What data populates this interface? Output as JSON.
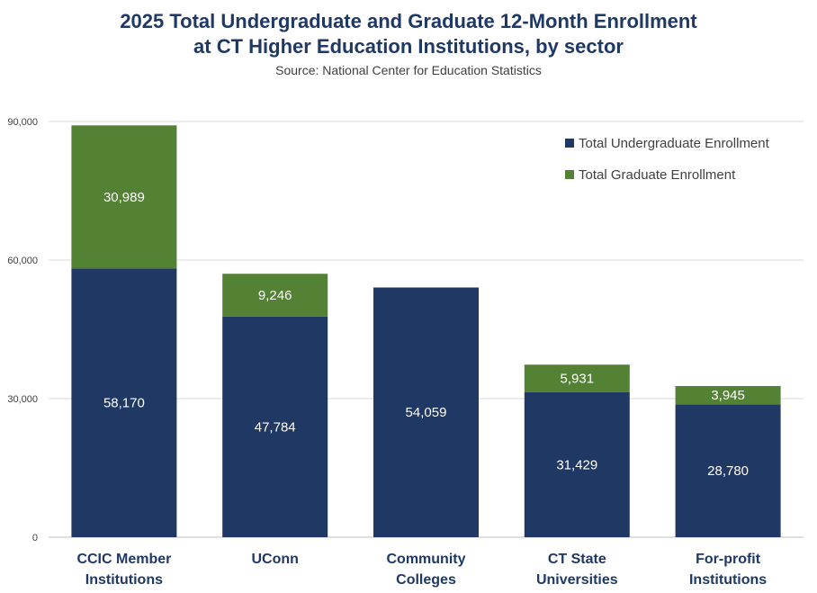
{
  "chart_data": {
    "type": "bar",
    "stacked": true,
    "title_lines": [
      "2025 Total Undergraduate and Graduate 12-Month Enrollment",
      "at CT Higher Education Institutions, by sector"
    ],
    "subtitle": "Source: National Center for Education Statistics",
    "categories": [
      [
        "CCIC Member",
        "Institutions"
      ],
      [
        "UConn"
      ],
      [
        "Community",
        "Colleges"
      ],
      [
        "CT State",
        "Universities"
      ],
      [
        "For-profit",
        "Institutions"
      ]
    ],
    "series": [
      {
        "name": "Total Undergraduate Enrollment",
        "color": "#203864",
        "values": [
          58170,
          47784,
          54059,
          31429,
          28780
        ],
        "labels": [
          "58,170",
          "47,784",
          "54,059",
          "31,429",
          "28,780"
        ]
      },
      {
        "name": "Total Graduate Enrollment",
        "color": "#548235",
        "values": [
          30989,
          9246,
          0,
          5931,
          3945
        ],
        "labels": [
          "30,989",
          "9,246",
          "",
          "5,931",
          "3,945"
        ]
      }
    ],
    "ylim": [
      0,
      90000
    ],
    "yticks": [
      0,
      30000,
      60000,
      90000
    ],
    "ytick_labels": [
      "0",
      "30,000",
      "60,000",
      "90,000"
    ],
    "grid": true,
    "legend_position": "top-right"
  }
}
